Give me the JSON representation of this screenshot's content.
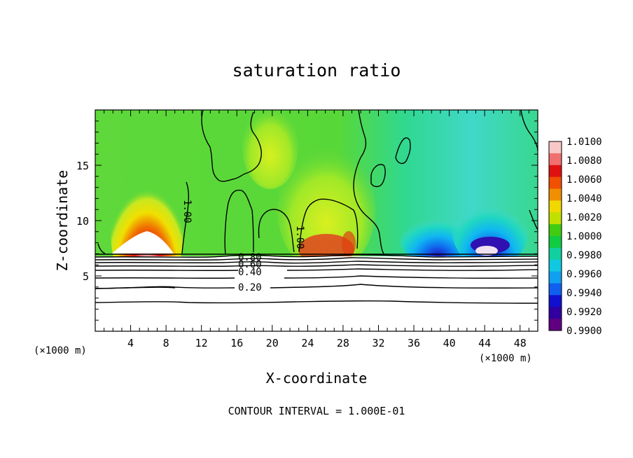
{
  "chart_data": {
    "type": "heatmap",
    "title": "saturation ratio",
    "xlabel": "X-coordinate",
    "ylabel": "Z-coordinate",
    "x_unit": "(×1000 m)",
    "y_unit": "(×1000 m)",
    "xlim": [
      0,
      50
    ],
    "ylim": [
      0,
      20
    ],
    "x_ticks": [
      4,
      8,
      12,
      16,
      20,
      24,
      28,
      32,
      36,
      40,
      44,
      48
    ],
    "y_ticks": [
      5,
      10,
      15
    ],
    "colorbar": {
      "levels": [
        "1.0100",
        "1.0080",
        "1.0060",
        "1.0040",
        "1.0020",
        "1.0000",
        "0.9980",
        "0.9960",
        "0.9940",
        "0.9920",
        "0.9900"
      ],
      "colors": [
        "#f8c8c8",
        "#f07070",
        "#e01010",
        "#f05000",
        "#f09000",
        "#f0d800",
        "#c0e000",
        "#40cc10",
        "#10cc40",
        "#10d0a0",
        "#10c8e0",
        "#10a0f0",
        "#1060f0",
        "#1010d0",
        "#3000a0",
        "#600080"
      ]
    },
    "contour_labels": [
      "1.00",
      "1.00",
      "0.80",
      "0.60",
      "0.40",
      "0.20"
    ],
    "footnote": "CONTOUR INTERVAL = 1.000E-01"
  }
}
